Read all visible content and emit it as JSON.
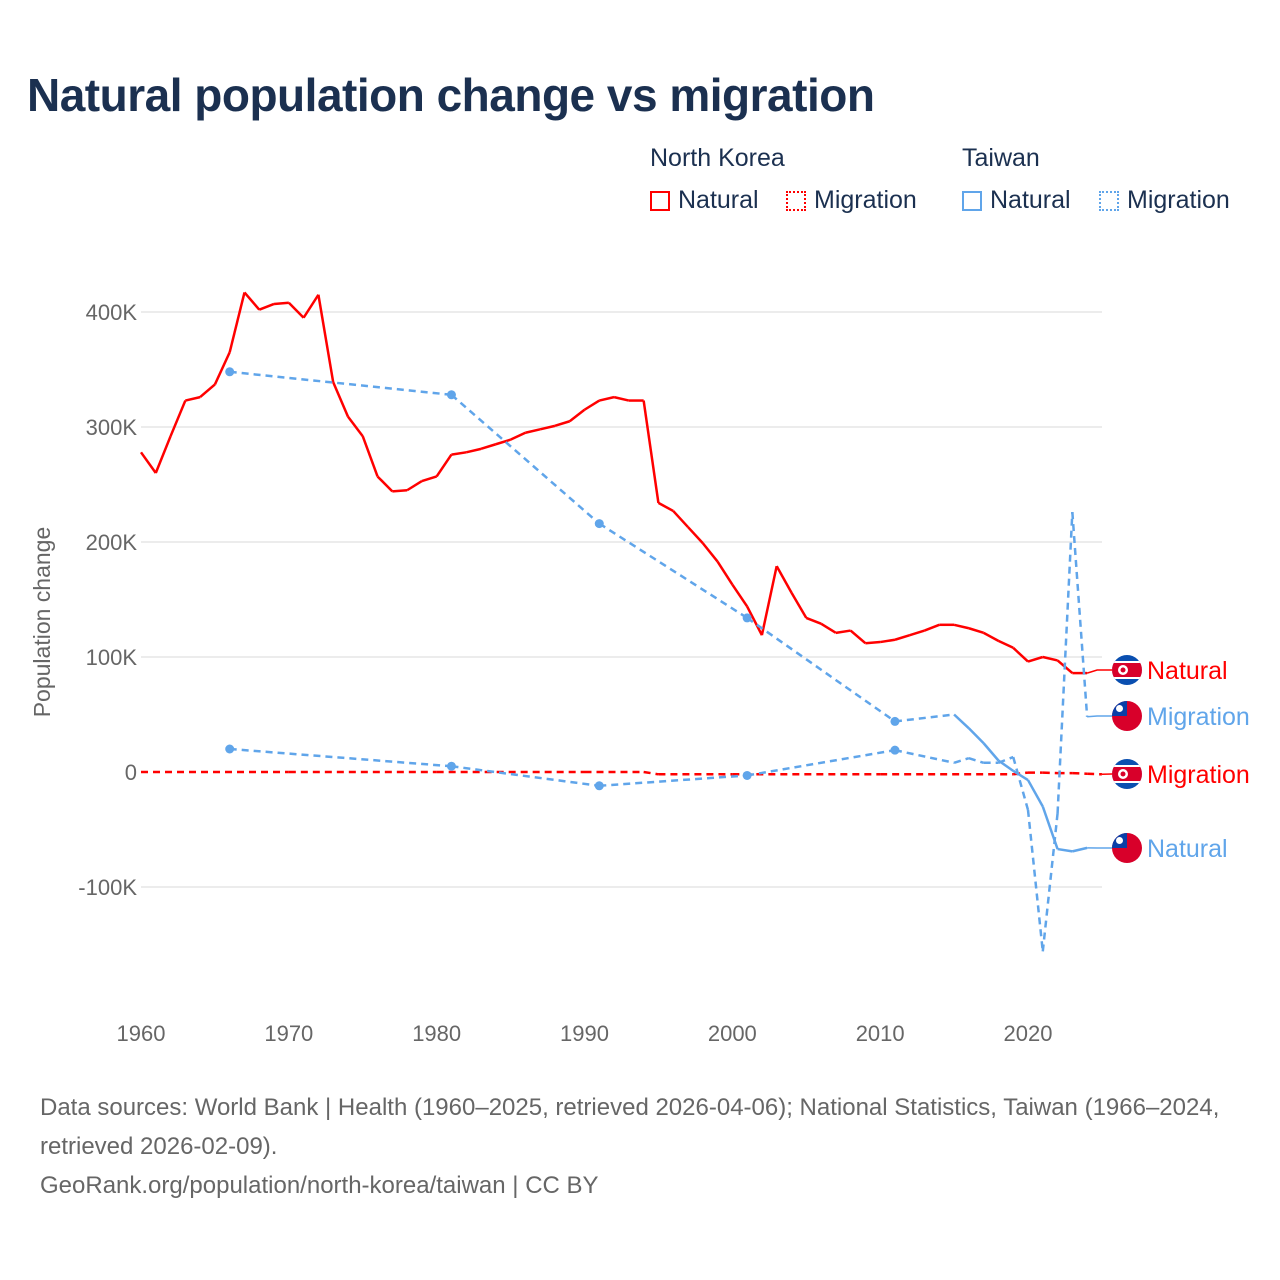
{
  "title": "Natural population change vs migration",
  "legend": {
    "groups": [
      {
        "name": "North Korea",
        "items": [
          {
            "label": "Natural",
            "style": "solid"
          },
          {
            "label": "Migration",
            "style": "dotted"
          }
        ],
        "color": "#ff0000"
      },
      {
        "name": "Taiwan",
        "items": [
          {
            "label": "Natural",
            "style": "solid"
          },
          {
            "label": "Migration",
            "style": "dotted"
          }
        ],
        "color": "#60a5ea"
      }
    ]
  },
  "footer": {
    "sources": "Data sources: World Bank | Health (1960–2025, retrieved 2026-04-06); National Statistics, Taiwan (1966–2024, retrieved 2026-02-09).",
    "credit": "GeoRank.org/population/north-korea/taiwan | CC BY"
  },
  "chart_data": {
    "type": "line",
    "title": "Natural population change vs migration",
    "xlabel": "",
    "ylabel": "Population change",
    "xlim": [
      1960,
      2025
    ],
    "ylim": [
      -160000,
      420000
    ],
    "x_ticks": [
      1960,
      1970,
      1980,
      1990,
      2000,
      2010,
      2020
    ],
    "x_tick_labels": [
      "1960",
      "1970",
      "1980",
      "1990",
      "2000",
      "2010",
      "2020"
    ],
    "y_ticks": [
      400000,
      300000,
      200000,
      100000,
      0,
      -100000
    ],
    "y_tick_labels": [
      "400K",
      "300K",
      "200K",
      "100K",
      "0",
      "-100K"
    ],
    "grid": true,
    "legend_position": "top-right",
    "series": [
      {
        "name": "North Korea Natural",
        "end_label": "Natural",
        "country": "North Korea",
        "color": "#ff0000",
        "dash": "solid",
        "points": [
          [
            1960,
            278000
          ],
          [
            1961,
            260000
          ],
          [
            1962,
            292000
          ],
          [
            1963,
            323000
          ],
          [
            1964,
            326000
          ],
          [
            1965,
            337000
          ],
          [
            1966,
            365000
          ],
          [
            1967,
            417000
          ],
          [
            1968,
            402000
          ],
          [
            1969,
            407000
          ],
          [
            1970,
            408000
          ],
          [
            1971,
            395000
          ],
          [
            1972,
            415000
          ],
          [
            1973,
            339000
          ],
          [
            1974,
            309000
          ],
          [
            1975,
            292000
          ],
          [
            1976,
            257000
          ],
          [
            1977,
            244000
          ],
          [
            1978,
            245000
          ],
          [
            1979,
            253000
          ],
          [
            1980,
            257000
          ],
          [
            1981,
            276000
          ],
          [
            1982,
            278000
          ],
          [
            1983,
            281000
          ],
          [
            1984,
            285000
          ],
          [
            1985,
            289000
          ],
          [
            1986,
            295000
          ],
          [
            1987,
            298000
          ],
          [
            1988,
            301000
          ],
          [
            1989,
            305000
          ],
          [
            1990,
            315000
          ],
          [
            1991,
            323000
          ],
          [
            1992,
            326000
          ],
          [
            1993,
            323000
          ],
          [
            1994,
            323000
          ],
          [
            1995,
            234000
          ],
          [
            1996,
            227000
          ],
          [
            1997,
            213000
          ],
          [
            1998,
            199000
          ],
          [
            1999,
            183000
          ],
          [
            2000,
            163000
          ],
          [
            2001,
            144000
          ],
          [
            2002,
            119000
          ],
          [
            2003,
            179000
          ],
          [
            2004,
            156000
          ],
          [
            2005,
            134000
          ],
          [
            2006,
            129000
          ],
          [
            2007,
            121000
          ],
          [
            2008,
            123000
          ],
          [
            2009,
            112000
          ],
          [
            2010,
            113000
          ],
          [
            2011,
            115000
          ],
          [
            2012,
            119000
          ],
          [
            2013,
            123000
          ],
          [
            2014,
            128000
          ],
          [
            2015,
            128000
          ],
          [
            2016,
            125000
          ],
          [
            2017,
            121000
          ],
          [
            2018,
            114000
          ],
          [
            2019,
            108000
          ],
          [
            2020,
            96000
          ],
          [
            2021,
            100000
          ],
          [
            2022,
            97000
          ],
          [
            2023,
            86000
          ],
          [
            2024,
            86000
          ]
        ]
      },
      {
        "name": "North Korea Migration",
        "end_label": "Migration",
        "country": "North Korea",
        "color": "#ff0000",
        "dash": "dashed",
        "points": [
          [
            1960,
            0
          ],
          [
            1970,
            0
          ],
          [
            1980,
            0
          ],
          [
            1990,
            0
          ],
          [
            1994,
            0
          ],
          [
            1995,
            -2000
          ],
          [
            2000,
            -2000
          ],
          [
            2010,
            -2000
          ],
          [
            2019,
            -2000
          ],
          [
            2020,
            -500
          ],
          [
            2021,
            -500
          ],
          [
            2022,
            -1000
          ],
          [
            2023,
            -1000
          ],
          [
            2024,
            -1500
          ],
          [
            2025,
            -2000
          ]
        ]
      },
      {
        "name": "Taiwan Natural",
        "end_label": "Natural",
        "country": "Taiwan",
        "color": "#60a5ea",
        "dash": "solid",
        "points": [
          [
            1966,
            348000
          ],
          [
            1981,
            328000
          ],
          [
            1991,
            216000
          ],
          [
            2001,
            134000
          ],
          [
            2011,
            44000
          ],
          [
            2015,
            50000
          ],
          [
            2016,
            38000
          ],
          [
            2017,
            25000
          ],
          [
            2018,
            10000
          ],
          [
            2019,
            1000
          ],
          [
            2020,
            -7000
          ],
          [
            2021,
            -30000
          ],
          [
            2022,
            -67000
          ],
          [
            2023,
            -69000
          ],
          [
            2024,
            -66000
          ]
        ]
      },
      {
        "name": "Taiwan Migration",
        "end_label": "Migration",
        "country": "Taiwan",
        "color": "#60a5ea",
        "dash": "dashed",
        "points": [
          [
            1966,
            20000
          ],
          [
            1981,
            5000
          ],
          [
            1991,
            -12000
          ],
          [
            2001,
            -3000
          ],
          [
            2011,
            19000
          ],
          [
            2015,
            8000
          ],
          [
            2016,
            12000
          ],
          [
            2017,
            8000
          ],
          [
            2018,
            8000
          ],
          [
            2019,
            13000
          ],
          [
            2020,
            -33000
          ],
          [
            2021,
            -156000
          ],
          [
            2022,
            -36000
          ],
          [
            2023,
            226000
          ],
          [
            2024,
            48000
          ]
        ]
      }
    ]
  }
}
